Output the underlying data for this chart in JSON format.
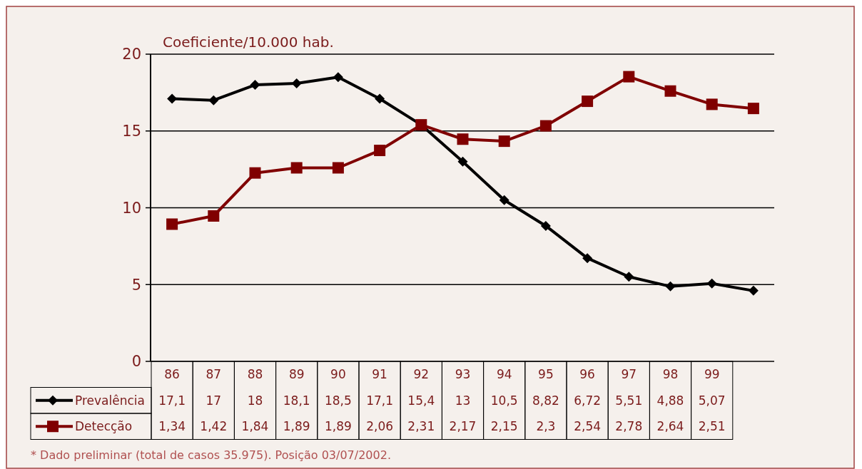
{
  "chart_data": {
    "type": "line",
    "ylabel": "Coeficiente/10.000 hab.",
    "categories": [
      "86",
      "87",
      "88",
      "89",
      "90",
      "91",
      "92",
      "93",
      "94",
      "95",
      "96",
      "97",
      "98",
      "99",
      null
    ],
    "series": [
      {
        "name": "Prevalência",
        "color": "#000000",
        "marker": "diamond",
        "values": [
          17.1,
          17,
          18,
          18.1,
          18.5,
          17.1,
          15.4,
          13,
          10.5,
          8.82,
          6.72,
          5.51,
          4.88,
          5.07,
          4.6
        ],
        "value_labels": [
          "17,1",
          "17",
          "18",
          "18,1",
          "18,5",
          "17,1",
          "15,4",
          "13",
          "10,5",
          "8,82",
          "6,72",
          "5,51",
          "4,88",
          "5,07",
          null
        ]
      },
      {
        "name": "Detecção",
        "color": "#800000",
        "marker": "square",
        "axis": "y2",
        "values": [
          1.34,
          1.42,
          1.84,
          1.89,
          1.89,
          2.06,
          2.31,
          2.17,
          2.15,
          2.3,
          2.54,
          2.78,
          2.64,
          2.51,
          2.47
        ],
        "value_labels": [
          "1,34",
          "1,42",
          "1,84",
          "1,89",
          "1,89",
          "2,06",
          "2,31",
          "2,17",
          "2,15",
          "2,3",
          "2,54",
          "2,78",
          "2,64",
          "2,51",
          null
        ]
      }
    ],
    "ylim": [
      0,
      20
    ],
    "yticks": [
      0,
      5,
      10,
      15,
      20
    ],
    "y2lim": [
      0,
      3
    ],
    "grid": "y",
    "legend": "left",
    "annotations": [
      "* Dado preliminar (total de casos 35.975). Posição 03/07/2002."
    ]
  }
}
